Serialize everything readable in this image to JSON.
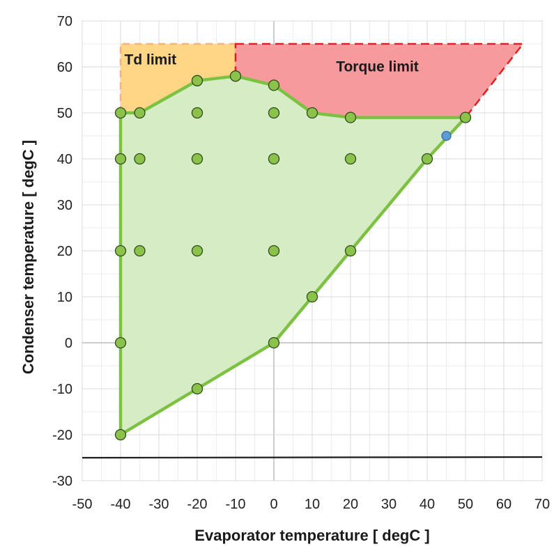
{
  "chart_data": {
    "type": "scatter",
    "title": "",
    "xlabel": "Evaporator temperature [ degC ]",
    "ylabel": "Condenser temperature [ degC ]",
    "xlim": [
      -50,
      70
    ],
    "ylim": [
      -30,
      70
    ],
    "x_ticks": [
      -50,
      -40,
      -30,
      -20,
      -10,
      0,
      10,
      20,
      30,
      40,
      50,
      60,
      70
    ],
    "y_ticks": [
      -30,
      -20,
      -10,
      0,
      10,
      20,
      30,
      40,
      50,
      60,
      70
    ],
    "grid": true,
    "minor_grid": true,
    "legend": "none",
    "series": [
      {
        "values_xy": [
          [
            -40,
            -20
          ],
          [
            -40,
            0
          ],
          [
            -40,
            20
          ],
          [
            -40,
            40
          ],
          [
            -40,
            50
          ],
          [
            -35,
            50
          ],
          [
            -35,
            40
          ],
          [
            -35,
            20
          ],
          [
            -20,
            57
          ],
          [
            -20,
            50
          ],
          [
            -20,
            40
          ],
          [
            -20,
            20
          ],
          [
            -20,
            -10
          ],
          [
            -10,
            58
          ],
          [
            0,
            56
          ],
          [
            0,
            50
          ],
          [
            0,
            40
          ],
          [
            0,
            20
          ],
          [
            0,
            0
          ],
          [
            10,
            50
          ],
          [
            10,
            10
          ],
          [
            20,
            49
          ],
          [
            20,
            40
          ],
          [
            20,
            20
          ],
          [
            40,
            40
          ],
          [
            50,
            49
          ]
        ],
        "color": "#8bc34a"
      },
      {
        "values_xy": [
          [
            45,
            45
          ]
        ],
        "color": "#5b9bd5"
      }
    ],
    "regions": [
      {
        "label": "Td limit",
        "fill": "#ffd685",
        "edge": "#f4b183",
        "boundary": [
          [
            -40,
            50
          ],
          [
            -40,
            65
          ],
          [
            -10,
            65
          ],
          [
            -10,
            58
          ],
          [
            -20,
            57
          ],
          [
            -35,
            50
          ]
        ]
      },
      {
        "label": "Torque limit",
        "fill": "#f79a9e",
        "edge": "#e02020",
        "boundary": [
          [
            -10,
            65
          ],
          [
            65,
            65
          ],
          [
            50,
            49
          ],
          [
            20,
            49
          ],
          [
            10,
            50
          ],
          [
            0,
            56
          ],
          [
            -10,
            58
          ]
        ]
      },
      {
        "label": "",
        "fill": "#d6ecc4",
        "edge": "#7dc143",
        "boundary": [
          [
            -40,
            -20
          ],
          [
            -40,
            50
          ],
          [
            -35,
            50
          ],
          [
            -20,
            57
          ],
          [
            -10,
            58
          ],
          [
            0,
            56
          ],
          [
            10,
            50
          ],
          [
            20,
            49
          ],
          [
            50,
            49
          ],
          [
            40,
            40
          ],
          [
            20,
            20
          ],
          [
            10,
            10
          ],
          [
            0,
            0
          ],
          [
            -20,
            -10
          ]
        ]
      }
    ],
    "reference_lines": [
      {
        "orientation": "horizontal",
        "value": -25,
        "color": "#1a1a1a"
      }
    ]
  }
}
